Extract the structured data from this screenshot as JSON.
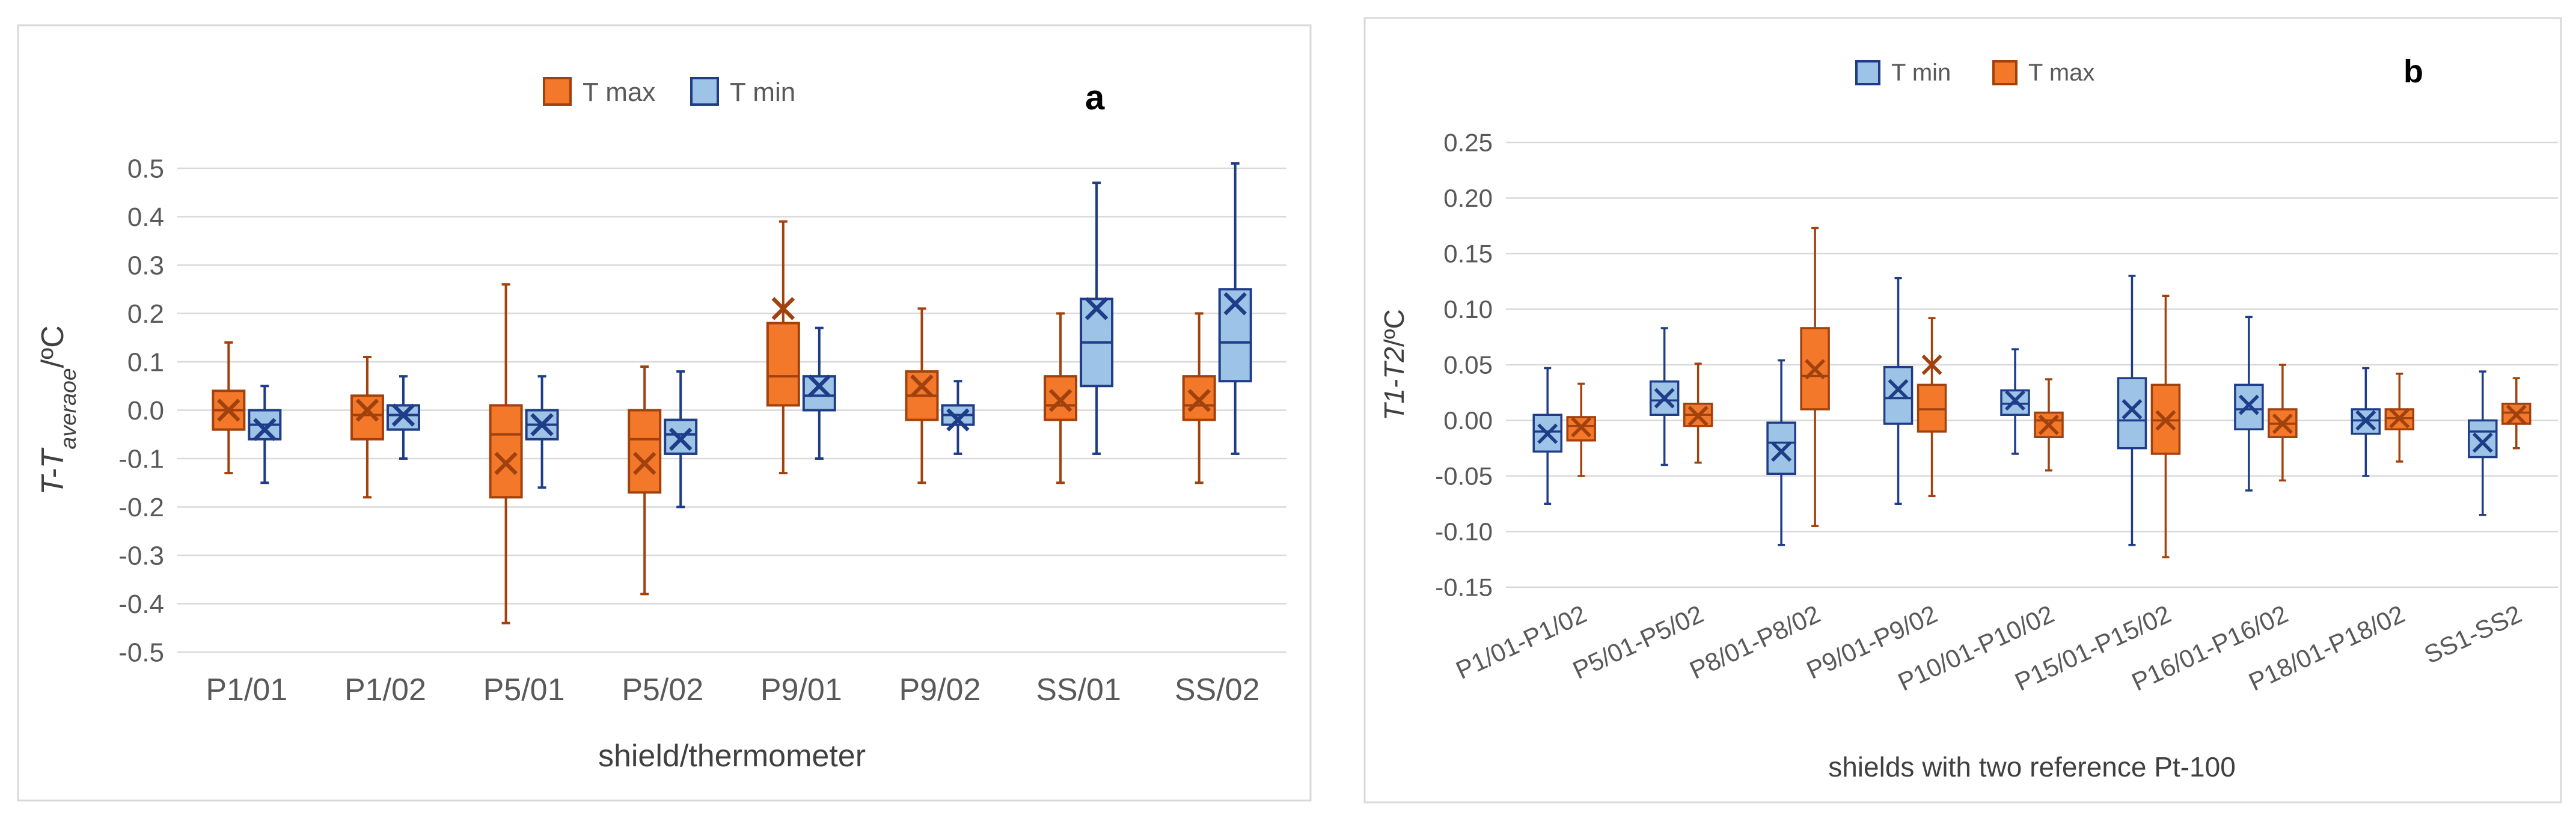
{
  "chart_data": [
    {
      "type": "box",
      "panel_label": "a",
      "xlabel": "shield/thermometer",
      "ylabel": {
        "main": "T-T",
        "sub": "averaoe",
        "unit": "/ºC"
      },
      "ylim": [
        -0.5,
        0.5
      ],
      "yticks": [
        "-0.5",
        "-0.4",
        "-0.3",
        "-0.2",
        "-0.1",
        "0.0",
        "0.1",
        "0.2",
        "0.3",
        "0.4",
        "0.5"
      ],
      "grid": true,
      "legend_position": "top-center",
      "categories": [
        "P1/01",
        "P1/02",
        "P5/01",
        "P5/02",
        "P9/01",
        "P9/02",
        "SS/01",
        "SS/02"
      ],
      "series": [
        {
          "name": "T max",
          "fill": "#F4782A",
          "stroke": "#A0410E",
          "boxes": [
            {
              "min": -0.13,
              "q1": -0.04,
              "median": 0.0,
              "q3": 0.04,
              "max": 0.14,
              "mean": 0.0
            },
            {
              "min": -0.18,
              "q1": -0.06,
              "median": -0.01,
              "q3": 0.03,
              "max": 0.11,
              "mean": 0.0
            },
            {
              "min": -0.44,
              "q1": -0.18,
              "median": -0.05,
              "q3": 0.01,
              "max": 0.26,
              "mean": -0.11
            },
            {
              "min": -0.38,
              "q1": -0.17,
              "median": -0.06,
              "q3": 0.0,
              "max": 0.09,
              "mean": -0.11
            },
            {
              "min": -0.13,
              "q1": 0.01,
              "median": 0.07,
              "q3": 0.18,
              "max": 0.39,
              "mean": 0.21
            },
            {
              "min": -0.15,
              "q1": -0.02,
              "median": 0.03,
              "q3": 0.08,
              "max": 0.21,
              "mean": 0.05
            },
            {
              "min": -0.15,
              "q1": -0.02,
              "median": 0.01,
              "q3": 0.07,
              "max": 0.2,
              "mean": 0.02
            },
            {
              "min": -0.15,
              "q1": -0.02,
              "median": 0.01,
              "q3": 0.07,
              "max": 0.2,
              "mean": 0.02
            }
          ]
        },
        {
          "name": "T min",
          "fill": "#9DC3E6",
          "stroke": "#1F3C88",
          "boxes": [
            {
              "min": -0.15,
              "q1": -0.06,
              "median": -0.03,
              "q3": 0.0,
              "max": 0.05,
              "mean": -0.04
            },
            {
              "min": -0.1,
              "q1": -0.04,
              "median": -0.01,
              "q3": 0.01,
              "max": 0.07,
              "mean": -0.01
            },
            {
              "min": -0.16,
              "q1": -0.06,
              "median": -0.03,
              "q3": 0.0,
              "max": 0.07,
              "mean": -0.03
            },
            {
              "min": -0.2,
              "q1": -0.09,
              "median": -0.05,
              "q3": -0.02,
              "max": 0.08,
              "mean": -0.06
            },
            {
              "min": -0.1,
              "q1": 0.0,
              "median": 0.03,
              "q3": 0.07,
              "max": 0.17,
              "mean": 0.05
            },
            {
              "min": -0.09,
              "q1": -0.03,
              "median": -0.01,
              "q3": 0.01,
              "max": 0.06,
              "mean": -0.02
            },
            {
              "min": -0.09,
              "q1": 0.05,
              "median": 0.14,
              "q3": 0.23,
              "max": 0.47,
              "mean": 0.21
            },
            {
              "min": -0.09,
              "q1": 0.06,
              "median": 0.14,
              "q3": 0.25,
              "max": 0.51,
              "mean": 0.22
            }
          ]
        }
      ]
    },
    {
      "type": "box",
      "panel_label": "b",
      "xlabel": "shields with two reference Pt-100",
      "ylabel": {
        "main": "T1-T2",
        "sub": "",
        "unit": "/ºC"
      },
      "ylim": [
        -0.15,
        0.25
      ],
      "yticks": [
        "-0.15",
        "-0.10",
        "-0.05",
        "0.00",
        "0.05",
        "0.10",
        "0.15",
        "0.20",
        "0.25"
      ],
      "grid": true,
      "legend_position": "top-center",
      "categories": [
        "P1/01-P1/02",
        "P5/01-P5/02",
        "P8/01-P8/02",
        "P9/01-P9/02",
        "P10/01-P10/02",
        "P15/01-P15/02",
        "P16/01-P16/02",
        "P18/01-P18/02",
        "SS1-SS2"
      ],
      "series": [
        {
          "name": "T min",
          "fill": "#9DC3E6",
          "stroke": "#1F3C88",
          "boxes": [
            {
              "min": -0.075,
              "q1": -0.028,
              "median": -0.01,
              "q3": 0.005,
              "max": 0.047,
              "mean": -0.012
            },
            {
              "min": -0.04,
              "q1": 0.005,
              "median": 0.018,
              "q3": 0.035,
              "max": 0.083,
              "mean": 0.02
            },
            {
              "min": -0.112,
              "q1": -0.048,
              "median": -0.02,
              "q3": -0.002,
              "max": 0.054,
              "mean": -0.028
            },
            {
              "min": -0.075,
              "q1": -0.003,
              "median": 0.02,
              "q3": 0.048,
              "max": 0.128,
              "mean": 0.028
            },
            {
              "min": -0.03,
              "q1": 0.005,
              "median": 0.015,
              "q3": 0.027,
              "max": 0.064,
              "mean": 0.018
            },
            {
              "min": -0.112,
              "q1": -0.025,
              "median": 0.0,
              "q3": 0.038,
              "max": 0.13,
              "mean": 0.01
            },
            {
              "min": -0.063,
              "q1": -0.008,
              "median": 0.01,
              "q3": 0.032,
              "max": 0.093,
              "mean": 0.014
            },
            {
              "min": -0.05,
              "q1": -0.012,
              "median": 0.0,
              "q3": 0.01,
              "max": 0.047,
              "mean": 0.0
            },
            {
              "min": -0.085,
              "q1": -0.033,
              "median": -0.01,
              "q3": 0.0,
              "max": 0.044,
              "mean": -0.02
            }
          ]
        },
        {
          "name": "T max",
          "fill": "#F4782A",
          "stroke": "#A0410E",
          "boxes": [
            {
              "min": -0.05,
              "q1": -0.018,
              "median": -0.005,
              "q3": 0.003,
              "max": 0.033,
              "mean": -0.006
            },
            {
              "min": -0.038,
              "q1": -0.005,
              "median": 0.005,
              "q3": 0.015,
              "max": 0.051,
              "mean": 0.004
            },
            {
              "min": -0.095,
              "q1": 0.01,
              "median": 0.04,
              "q3": 0.083,
              "max": 0.173,
              "mean": 0.046
            },
            {
              "min": -0.068,
              "q1": -0.01,
              "median": 0.01,
              "q3": 0.032,
              "max": 0.092,
              "mean": 0.05
            },
            {
              "min": -0.045,
              "q1": -0.015,
              "median": 0.0,
              "q3": 0.007,
              "max": 0.037,
              "mean": -0.004
            },
            {
              "min": -0.123,
              "q1": -0.03,
              "median": 0.0,
              "q3": 0.032,
              "max": 0.112,
              "mean": 0.0
            },
            {
              "min": -0.054,
              "q1": -0.015,
              "median": -0.003,
              "q3": 0.01,
              "max": 0.05,
              "mean": -0.003
            },
            {
              "min": -0.037,
              "q1": -0.008,
              "median": 0.002,
              "q3": 0.01,
              "max": 0.042,
              "mean": 0.002
            },
            {
              "min": -0.025,
              "q1": -0.003,
              "median": 0.007,
              "q3": 0.015,
              "max": 0.038,
              "mean": 0.005
            }
          ]
        }
      ]
    }
  ]
}
